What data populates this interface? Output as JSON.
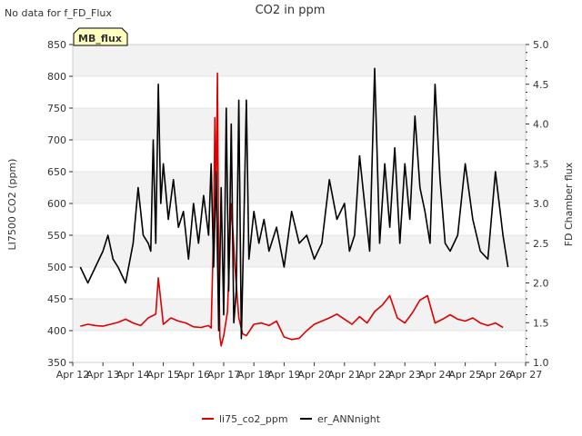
{
  "corner_note": "No data for f_FD_Flux",
  "badge": {
    "label": "MB_flux",
    "bg": "#ffffc0",
    "fg": "#8b0000"
  },
  "chart_data": {
    "type": "line",
    "title": "CO2 in ppm",
    "ylabel": "LI7500 CO2 (ppm)",
    "y2label": "FD Chamber flux",
    "ylim": [
      350,
      850
    ],
    "y2lim": [
      1.0,
      5.0
    ],
    "xlim": [
      "2024-04-12",
      "2024-04-27"
    ],
    "yticks": [
      350,
      400,
      450,
      500,
      550,
      600,
      650,
      700,
      750,
      800,
      850
    ],
    "y2ticks": [
      "1.0",
      "1.5",
      "2.0",
      "2.5",
      "3.0",
      "3.5",
      "4.0",
      "4.5",
      "5.0"
    ],
    "xtick_labels": [
      "Apr 12",
      "Apr 13",
      "Apr 14",
      "Apr 15",
      "Apr 16",
      "Apr 17",
      "Apr 18",
      "Apr 19",
      "Apr 20",
      "Apr 21",
      "Apr 22",
      "Apr 23",
      "Apr 24",
      "Apr 25",
      "Apr 26",
      "Apr 27"
    ],
    "grid": "horizontal bands",
    "legend_position": "bottom-center",
    "series": [
      {
        "name": "li75_co2_ppm",
        "axis": "left",
        "color": "#dd0000",
        "x": [
          "Apr 12 06:00",
          "Apr 12 12:00",
          "Apr 12 18:00",
          "Apr 13 00:00",
          "Apr 13 06:00",
          "Apr 13 12:00",
          "Apr 13 18:00",
          "Apr 14 00:00",
          "Apr 14 06:00",
          "Apr 14 12:00",
          "Apr 14 18:00",
          "Apr 14 20:00",
          "Apr 15 00:00",
          "Apr 15 06:00",
          "Apr 15 12:00",
          "Apr 15 18:00",
          "Apr 16 00:00",
          "Apr 16 06:00",
          "Apr 16 12:00",
          "Apr 16 14:00",
          "Apr 16 16:00",
          "Apr 16 17:00",
          "Apr 16 18:00",
          "Apr 16 19:00",
          "Apr 16 20:00",
          "Apr 16 21:00",
          "Apr 16 22:00",
          "Apr 17 00:00",
          "Apr 17 03:00",
          "Apr 17 06:00",
          "Apr 17 09:00",
          "Apr 17 12:00",
          "Apr 17 15:00",
          "Apr 17 18:00",
          "Apr 18 00:00",
          "Apr 18 06:00",
          "Apr 18 12:00",
          "Apr 18 18:00",
          "Apr 19 00:00",
          "Apr 19 06:00",
          "Apr 19 12:00",
          "Apr 19 18:00",
          "Apr 20 00:00",
          "Apr 20 06:00",
          "Apr 20 12:00",
          "Apr 20 18:00",
          "Apr 21 00:00",
          "Apr 21 06:00",
          "Apr 21 12:00",
          "Apr 21 18:00",
          "Apr 22 00:00",
          "Apr 22 06:00",
          "Apr 22 12:00",
          "Apr 22 18:00",
          "Apr 23 00:00",
          "Apr 23 06:00",
          "Apr 23 12:00",
          "Apr 23 18:00",
          "Apr 24 00:00",
          "Apr 24 06:00",
          "Apr 24 12:00",
          "Apr 24 18:00",
          "Apr 25 00:00",
          "Apr 25 06:00",
          "Apr 25 12:00",
          "Apr 25 18:00",
          "Apr 26 00:00",
          "Apr 26 06:00"
        ],
        "y": [
          407,
          410,
          408,
          407,
          410,
          413,
          418,
          412,
          408,
          420,
          426,
          483,
          410,
          420,
          415,
          412,
          406,
          405,
          408,
          404,
          560,
          735,
          600,
          805,
          500,
          390,
          376,
          392,
          430,
          600,
          500,
          420,
          395,
          392,
          410,
          412,
          408,
          415,
          390,
          386,
          388,
          400,
          410,
          415,
          420,
          426,
          418,
          410,
          422,
          412,
          430,
          440,
          455,
          420,
          412,
          428,
          448,
          455,
          412,
          418,
          425,
          418,
          415,
          420,
          412,
          408,
          412,
          405
        ]
      },
      {
        "name": "er_ANNnight",
        "axis": "right",
        "color": "#000000",
        "x": [
          "Apr 12 06:00",
          "Apr 12 12:00",
          "Apr 12 18:00",
          "Apr 13 00:00",
          "Apr 13 04:00",
          "Apr 13 08:00",
          "Apr 13 12:00",
          "Apr 13 18:00",
          "Apr 14 00:00",
          "Apr 14 04:00",
          "Apr 14 08:00",
          "Apr 14 12:00",
          "Apr 14 14:00",
          "Apr 14 16:00",
          "Apr 14 18:00",
          "Apr 14 20:00",
          "Apr 14 22:00",
          "Apr 15 00:00",
          "Apr 15 04:00",
          "Apr 15 08:00",
          "Apr 15 12:00",
          "Apr 15 16:00",
          "Apr 15 20:00",
          "Apr 16 00:00",
          "Apr 16 04:00",
          "Apr 16 08:00",
          "Apr 16 12:00",
          "Apr 16 14:00",
          "Apr 16 16:00",
          "Apr 16 18:00",
          "Apr 16 20:00",
          "Apr 16 22:00",
          "Apr 17 00:00",
          "Apr 17 02:00",
          "Apr 17 04:00",
          "Apr 17 06:00",
          "Apr 17 08:00",
          "Apr 17 10:00",
          "Apr 17 12:00",
          "Apr 17 14:00",
          "Apr 17 16:00",
          "Apr 17 18:00",
          "Apr 17 20:00",
          "Apr 18 00:00",
          "Apr 18 04:00",
          "Apr 18 08:00",
          "Apr 18 12:00",
          "Apr 18 18:00",
          "Apr 19 00:00",
          "Apr 19 06:00",
          "Apr 19 12:00",
          "Apr 19 18:00",
          "Apr 20 00:00",
          "Apr 20 06:00",
          "Apr 20 12:00",
          "Apr 20 18:00",
          "Apr 21 00:00",
          "Apr 21 04:00",
          "Apr 21 08:00",
          "Apr 21 12:00",
          "Apr 21 16:00",
          "Apr 21 20:00",
          "Apr 22 00:00",
          "Apr 22 04:00",
          "Apr 22 08:00",
          "Apr 22 12:00",
          "Apr 22 16:00",
          "Apr 22 20:00",
          "Apr 23 00:00",
          "Apr 23 04:00",
          "Apr 23 08:00",
          "Apr 23 12:00",
          "Apr 23 16:00",
          "Apr 23 20:00",
          "Apr 24 00:00",
          "Apr 24 04:00",
          "Apr 24 08:00",
          "Apr 24 12:00",
          "Apr 24 18:00",
          "Apr 25 00:00",
          "Apr 25 06:00",
          "Apr 25 12:00",
          "Apr 25 18:00",
          "Apr 26 00:00",
          "Apr 26 06:00",
          "Apr 26 10:00"
        ],
        "y": [
          2.2,
          2.0,
          2.2,
          2.4,
          2.6,
          2.3,
          2.2,
          2.0,
          2.5,
          3.2,
          2.6,
          2.5,
          2.4,
          3.8,
          2.5,
          4.5,
          3.0,
          3.5,
          2.8,
          3.3,
          2.7,
          2.9,
          2.3,
          3.0,
          2.5,
          3.1,
          2.6,
          3.5,
          2.2,
          3.4,
          1.4,
          3.2,
          1.6,
          4.2,
          1.9,
          4.0,
          1.5,
          1.9,
          4.3,
          1.3,
          2.7,
          4.3,
          2.3,
          2.9,
          2.5,
          2.8,
          2.4,
          2.7,
          2.2,
          2.9,
          2.5,
          2.6,
          2.3,
          2.5,
          3.3,
          2.8,
          3.0,
          2.4,
          2.6,
          3.6,
          3.0,
          2.4,
          4.7,
          2.5,
          3.5,
          2.7,
          3.7,
          2.5,
          3.5,
          2.8,
          4.1,
          3.2,
          2.9,
          2.5,
          4.5,
          3.3,
          2.5,
          2.4,
          2.6,
          3.5,
          2.8,
          2.4,
          2.3,
          3.4,
          2.6,
          2.2
        ]
      }
    ]
  }
}
